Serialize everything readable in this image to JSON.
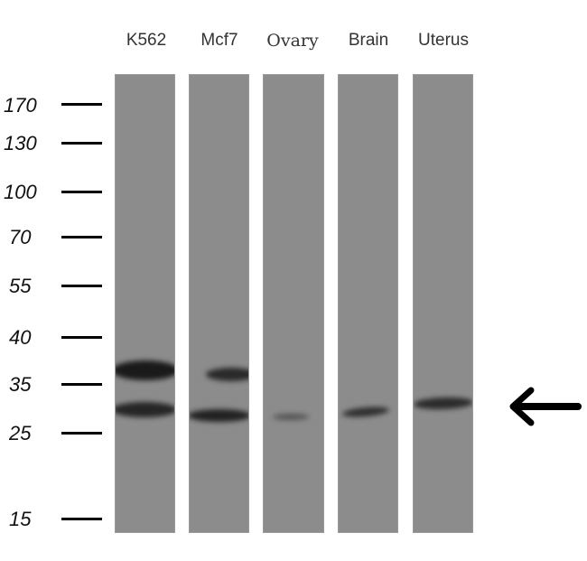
{
  "lanes": [
    {
      "label": "K562"
    },
    {
      "label": "Mcf7"
    },
    {
      "label": "Ovary"
    },
    {
      "label": "Brain"
    },
    {
      "label": "Uterus"
    }
  ],
  "markers": [
    {
      "label": "170"
    },
    {
      "label": "130"
    },
    {
      "label": "100"
    },
    {
      "label": "70"
    },
    {
      "label": "55"
    },
    {
      "label": "40"
    },
    {
      "label": "35"
    },
    {
      "label": "25"
    },
    {
      "label": "15"
    }
  ],
  "arrow_icon": "left-arrow-icon"
}
